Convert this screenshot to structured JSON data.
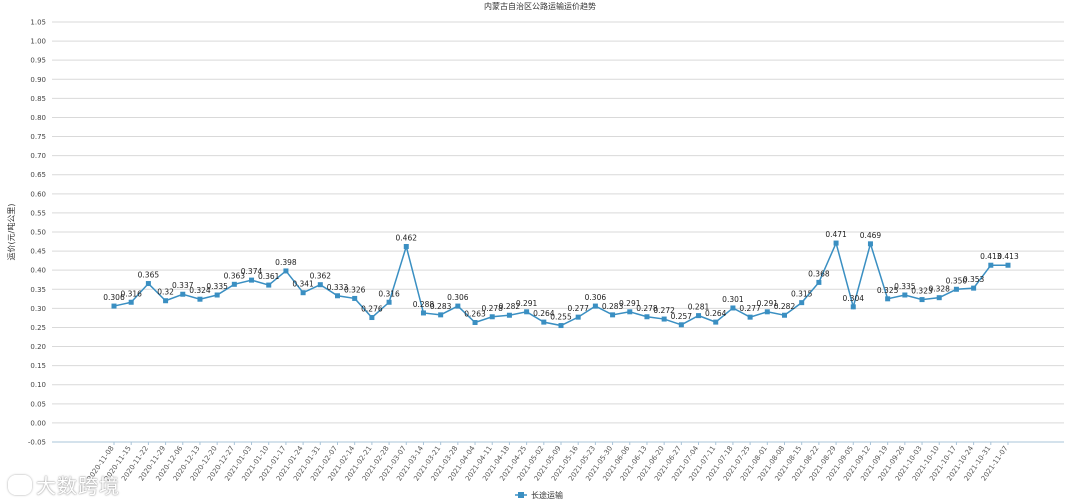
{
  "chart_data": {
    "type": "line",
    "title": "内蒙古自治区公路运输运价趋势",
    "ylabel": "运价(元/吨公里)",
    "xlabel": "",
    "ylim": [
      -0.05,
      1.05
    ],
    "yticks": [
      "-0.05",
      "0.00",
      "0.05",
      "0.10",
      "0.15",
      "0.20",
      "0.25",
      "0.30",
      "0.35",
      "0.40",
      "0.45",
      "0.50",
      "0.55",
      "0.60",
      "0.65",
      "0.70",
      "0.75",
      "0.80",
      "0.85",
      "0.90",
      "0.95",
      "1.00",
      "1.05"
    ],
    "grid": true,
    "legend_position": "bottom",
    "categories": [
      "2020-11-08",
      "2020-11-15",
      "2020-11-22",
      "2020-11-29",
      "2020-12-06",
      "2020-12-13",
      "2020-12-20",
      "2020-12-27",
      "2021-01-03",
      "2021-01-10",
      "2021-01-17",
      "2021-01-24",
      "2021-01-31",
      "2021-02-07",
      "2021-02-14",
      "2021-02-21",
      "2021-02-28",
      "2021-03-07",
      "2021-03-14",
      "2021-03-21",
      "2021-03-28",
      "2021-04-04",
      "2021-04-11",
      "2021-04-18",
      "2021-04-25",
      "2021-05-02",
      "2021-05-09",
      "2021-05-16",
      "2021-05-23",
      "2021-05-30",
      "2021-06-06",
      "2021-06-13",
      "2021-06-20",
      "2021-06-27",
      "2021-07-04",
      "2021-07-11",
      "2021-07-18",
      "2021-07-25",
      "2021-08-01",
      "2021-08-08",
      "2021-08-15",
      "2021-08-22",
      "2021-08-29",
      "2021-09-05",
      "2021-09-12",
      "2021-09-19",
      "2021-09-26",
      "2021-10-03",
      "2021-10-10",
      "2021-10-17",
      "2021-10-24",
      "2021-10-31",
      "2021-11-07"
    ],
    "series": [
      {
        "name": "长途运输",
        "color": "#3a8fc2",
        "values": [
          0.306,
          0.316,
          0.365,
          0.32,
          0.337,
          0.324,
          0.335,
          0.363,
          0.374,
          0.361,
          0.398,
          0.341,
          0.362,
          0.333,
          0.326,
          0.276,
          0.316,
          0.462,
          0.288,
          0.283,
          0.306,
          0.263,
          0.278,
          0.282,
          0.291,
          0.264,
          0.255,
          0.277,
          0.306,
          0.283,
          0.291,
          0.278,
          0.272,
          0.257,
          0.281,
          0.264,
          0.301,
          0.277,
          0.291,
          0.282,
          0.315,
          0.368,
          0.471,
          0.304,
          0.469,
          0.325,
          0.335,
          0.323,
          0.328,
          0.35,
          0.353,
          0.413,
          0.413
        ],
        "labels": [
          "0.306",
          "0.316",
          "0.365",
          "0.32",
          "0.337",
          "0.324",
          "0.335",
          "0.363",
          "0.374",
          "0.361",
          "0.398",
          "0.341",
          "0.362",
          "0.333",
          "0.326",
          "0.276",
          "0.316",
          "0.462",
          "0.288",
          "0.283",
          "0.306",
          "0.263",
          "0.278",
          "0.282",
          "0.291",
          "0.264",
          "0.255",
          "0.277",
          "0.306",
          "0.283",
          "0.291",
          "0.278",
          "0.272",
          "0.257",
          "0.281",
          "0.264",
          "0.301",
          "0.277",
          "0.291",
          "0.282",
          "0.315",
          "0.368",
          "0.471",
          "0.304",
          "0.469",
          "0.325",
          "0.335",
          "0.323",
          "0.328",
          "0.350",
          "0.353",
          "0.413",
          "0.413"
        ]
      }
    ]
  },
  "watermark": {
    "text": "大数跨境",
    "icon": "brand-logo-icon"
  }
}
